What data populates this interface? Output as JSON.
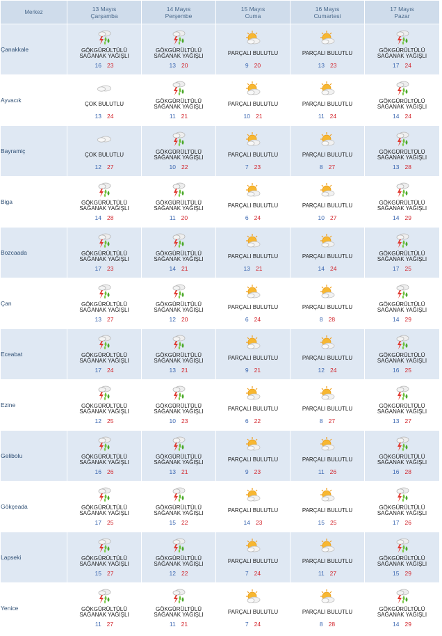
{
  "header": {
    "merkez_label": "Merkez",
    "days": [
      {
        "date": "13 Mayıs",
        "weekday": "Çarşamba"
      },
      {
        "date": "14 Mayıs",
        "weekday": "Perşembe"
      },
      {
        "date": "15 Mayıs",
        "weekday": "Cuma"
      },
      {
        "date": "16 Mayıs",
        "weekday": "Cumartesi"
      },
      {
        "date": "17 Mayıs",
        "weekday": "Pazar"
      }
    ]
  },
  "conditions": {
    "storm": {
      "text": "GÖKGÜRÜLTÜLÜ SAĞANAK YAĞIŞLI",
      "icon": "thunderstorm-rain-icon"
    },
    "partly": {
      "text": "PARÇALI BULUTLU",
      "icon": "partly-cloudy-sun-icon"
    },
    "cloudy": {
      "text": "ÇOK BULUTLU",
      "icon": "cloud-icon"
    }
  },
  "colors": {
    "low_temp": "#3a66b0",
    "high_temp": "#d2242b",
    "row_alt": "#dfe8f3",
    "header_bg": "#cfdceb"
  },
  "rows": [
    {
      "city": "Çanakkale",
      "days": [
        {
          "cond": "storm",
          "cond_text": "GÖKGÜRÜLTÜLÜ SAĞANAK YAĞIŞLI",
          "lo": "16",
          "hi": "23"
        },
        {
          "cond": "storm",
          "cond_text": "GÖKGÜRÜLTÜLÜ SAĞANAK YAĞIŞLI",
          "lo": "13",
          "hi": "20"
        },
        {
          "cond": "partly",
          "cond_text": "PARÇALI BULUTLU",
          "lo": "9",
          "hi": "20"
        },
        {
          "cond": "partly",
          "cond_text": "PARÇALI BULUTLU",
          "lo": "13",
          "hi": "23"
        },
        {
          "cond": "storm",
          "cond_text": "GÖKGÜRÜLTÜLÜ SAĞANAK YAĞIŞLI",
          "lo": "17",
          "hi": "24"
        }
      ]
    },
    {
      "city": "Ayvacık",
      "days": [
        {
          "cond": "cloudy",
          "cond_text": "ÇOK BULUTLU",
          "lo": "13",
          "hi": "24"
        },
        {
          "cond": "storm",
          "cond_text": "GÖKGÜRÜLTÜLÜ SAĞANAK YAĞIŞLI",
          "lo": "11",
          "hi": "21"
        },
        {
          "cond": "partly",
          "cond_text": "PARÇALI BULUTLU",
          "lo": "10",
          "hi": "21"
        },
        {
          "cond": "partly",
          "cond_text": "PARÇALI BULUTLU",
          "lo": "11",
          "hi": "24"
        },
        {
          "cond": "storm",
          "cond_text": "GÖKGÜRÜLTÜLÜ SAĞANAK YAĞIŞLI",
          "lo": "14",
          "hi": "24"
        }
      ]
    },
    {
      "city": "Bayramiç",
      "days": [
        {
          "cond": "cloudy",
          "cond_text": "ÇOK BULUTLU",
          "lo": "12",
          "hi": "27"
        },
        {
          "cond": "storm",
          "cond_text": "GÖKGÜRÜLTÜLÜ SAĞANAK YAĞIŞLI",
          "lo": "10",
          "hi": "22"
        },
        {
          "cond": "partly",
          "cond_text": "PARÇALI BULUTLU",
          "lo": "7",
          "hi": "23"
        },
        {
          "cond": "partly",
          "cond_text": "PARÇALI BULUTLU",
          "lo": "8",
          "hi": "27"
        },
        {
          "cond": "storm",
          "cond_text": "GÖKGÜRÜLTÜLÜ SAĞANAK YAĞIŞLI",
          "lo": "13",
          "hi": "28"
        }
      ]
    },
    {
      "city": "Biga",
      "days": [
        {
          "cond": "storm",
          "cond_text": "GÖKGÜRÜLTÜLÜ SAĞANAK YAĞIŞLI",
          "lo": "14",
          "hi": "28"
        },
        {
          "cond": "storm",
          "cond_text": "GÖKGÜRÜLTÜLÜ SAĞANAK YAĞIŞLI",
          "lo": "11",
          "hi": "20"
        },
        {
          "cond": "partly",
          "cond_text": "PARÇALI BULUTLU",
          "lo": "6",
          "hi": "24"
        },
        {
          "cond": "partly",
          "cond_text": "PARÇALI BULUTLU",
          "lo": "10",
          "hi": "27"
        },
        {
          "cond": "storm",
          "cond_text": "GÖKGÜRÜLTÜLÜ SAĞANAK YAĞIŞLI",
          "lo": "14",
          "hi": "29"
        }
      ]
    },
    {
      "city": "Bozcaada",
      "days": [
        {
          "cond": "storm",
          "cond_text": "GÖKGÜRÜLTÜLÜ SAĞANAK YAĞIŞLI",
          "lo": "17",
          "hi": "23"
        },
        {
          "cond": "storm",
          "cond_text": "GÖKGÜRÜLTÜLÜ SAĞANAK YAĞIŞLI",
          "lo": "14",
          "hi": "21"
        },
        {
          "cond": "partly",
          "cond_text": "PARÇALI BULUTLU",
          "lo": "13",
          "hi": "21"
        },
        {
          "cond": "partly",
          "cond_text": "PARÇALI BULUTLU",
          "lo": "14",
          "hi": "24"
        },
        {
          "cond": "storm",
          "cond_text": "GÖKGÜRÜLTÜLÜ SAĞANAK YAĞIŞLI",
          "lo": "17",
          "hi": "25"
        }
      ]
    },
    {
      "city": "Çan",
      "days": [
        {
          "cond": "storm",
          "cond_text": "GÖKGÜRÜLTÜLÜ SAĞANAK YAĞIŞLI",
          "lo": "13",
          "hi": "27"
        },
        {
          "cond": "storm",
          "cond_text": "GÖKGÜRÜLTÜLÜ SAĞANAK YAĞIŞLI",
          "lo": "12",
          "hi": "20"
        },
        {
          "cond": "partly",
          "cond_text": "PARÇALI BULUTLU",
          "lo": "6",
          "hi": "24"
        },
        {
          "cond": "partly",
          "cond_text": "PARÇALI BULUTLU",
          "lo": "8",
          "hi": "28"
        },
        {
          "cond": "storm",
          "cond_text": "GÖKGÜRÜLTÜLÜ SAĞANAK YAĞIŞLI",
          "lo": "14",
          "hi": "29"
        }
      ]
    },
    {
      "city": "Eceabat",
      "days": [
        {
          "cond": "storm",
          "cond_text": "GÖKGÜRÜLTÜLÜ SAĞANAK YAĞIŞLI",
          "lo": "17",
          "hi": "24"
        },
        {
          "cond": "storm",
          "cond_text": "GÖKGÜRÜLTÜLÜ SAĞANAK YAĞIŞLI",
          "lo": "13",
          "hi": "21"
        },
        {
          "cond": "partly",
          "cond_text": "PARÇALI BULUTLU",
          "lo": "9",
          "hi": "21"
        },
        {
          "cond": "partly",
          "cond_text": "PARÇALI BULUTLU",
          "lo": "12",
          "hi": "24"
        },
        {
          "cond": "storm",
          "cond_text": "GÖKGÜRÜLTÜLÜ SAĞANAK YAĞIŞLI",
          "lo": "16",
          "hi": "25"
        }
      ]
    },
    {
      "city": "Ezine",
      "days": [
        {
          "cond": "storm",
          "cond_text": "GÖKGÜRÜLTÜLÜ SAĞANAK YAĞIŞLI",
          "lo": "12",
          "hi": "25"
        },
        {
          "cond": "storm",
          "cond_text": "GÖKGÜRÜLTÜLÜ SAĞANAK YAĞIŞLI",
          "lo": "10",
          "hi": "23"
        },
        {
          "cond": "partly",
          "cond_text": "PARÇALI BULUTLU",
          "lo": "6",
          "hi": "22"
        },
        {
          "cond": "partly",
          "cond_text": "PARÇALI BULUTLU",
          "lo": "8",
          "hi": "27"
        },
        {
          "cond": "storm",
          "cond_text": "GÖKGÜRÜLTÜLÜ SAĞANAK YAĞIŞLI",
          "lo": "13",
          "hi": "27"
        }
      ]
    },
    {
      "city": "Gelibolu",
      "days": [
        {
          "cond": "storm",
          "cond_text": "GÖKGÜRÜLTÜLÜ SAĞANAK YAĞIŞLI",
          "lo": "16",
          "hi": "26"
        },
        {
          "cond": "storm",
          "cond_text": "GÖKGÜRÜLTÜLÜ SAĞANAK YAĞIŞLI",
          "lo": "13",
          "hi": "21"
        },
        {
          "cond": "partly",
          "cond_text": "PARÇALI BULUTLU",
          "lo": "9",
          "hi": "23"
        },
        {
          "cond": "partly",
          "cond_text": "PARÇALI BULUTLU",
          "lo": "11",
          "hi": "26"
        },
        {
          "cond": "storm",
          "cond_text": "GÖKGÜRÜLTÜLÜ SAĞANAK YAĞIŞLI",
          "lo": "16",
          "hi": "28"
        }
      ]
    },
    {
      "city": "Gökçeada",
      "days": [
        {
          "cond": "storm",
          "cond_text": "GÖKGÜRÜLTÜLÜ SAĞANAK YAĞIŞLI",
          "lo": "17",
          "hi": "25"
        },
        {
          "cond": "storm",
          "cond_text": "GÖKGÜRÜLTÜLÜ SAĞANAK YAĞIŞLI",
          "lo": "15",
          "hi": "22"
        },
        {
          "cond": "partly",
          "cond_text": "PARÇALI BULUTLU",
          "lo": "14",
          "hi": "23"
        },
        {
          "cond": "partly",
          "cond_text": "PARÇALI BULUTLU",
          "lo": "15",
          "hi": "25"
        },
        {
          "cond": "storm",
          "cond_text": "GÖKGÜRÜLTÜLÜ SAĞANAK YAĞIŞLI",
          "lo": "17",
          "hi": "26"
        }
      ]
    },
    {
      "city": "Lapseki",
      "days": [
        {
          "cond": "storm",
          "cond_text": "GÖKGÜRÜLTÜLÜ SAĞANAK YAĞIŞLI",
          "lo": "15",
          "hi": "27"
        },
        {
          "cond": "storm",
          "cond_text": "GÖKGÜRÜLTÜLÜ SAĞANAK YAĞIŞLI",
          "lo": "12",
          "hi": "22"
        },
        {
          "cond": "partly",
          "cond_text": "PARÇALI BULUTLU",
          "lo": "7",
          "hi": "24"
        },
        {
          "cond": "partly",
          "cond_text": "PARÇALI BULUTLU",
          "lo": "11",
          "hi": "27"
        },
        {
          "cond": "storm",
          "cond_text": "GÖKGÜRÜLTÜLÜ SAĞANAK YAĞIŞLI",
          "lo": "15",
          "hi": "29"
        }
      ]
    },
    {
      "city": "Yenice",
      "days": [
        {
          "cond": "storm",
          "cond_text": "GÖKGÜRÜLTÜLÜ SAĞANAK YAĞIŞLI",
          "lo": "11",
          "hi": "27"
        },
        {
          "cond": "storm",
          "cond_text": "GÖKGÜRÜLTÜLÜ SAĞANAK YAĞIŞLI",
          "lo": "11",
          "hi": "21"
        },
        {
          "cond": "partly",
          "cond_text": "PARÇALI BULUTLU",
          "lo": "7",
          "hi": "24"
        },
        {
          "cond": "partly",
          "cond_text": "PARÇALI BULUTLU",
          "lo": "8",
          "hi": "28"
        },
        {
          "cond": "storm",
          "cond_text": "GÖKGÜRÜLTÜLÜ SAĞANAK YAĞIŞLI",
          "lo": "14",
          "hi": "29"
        }
      ]
    }
  ]
}
